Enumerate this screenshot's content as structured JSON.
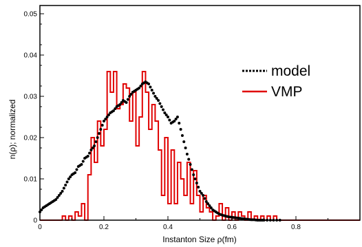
{
  "chart_data": {
    "type": "line",
    "xlabel": "Instanton Size ρ(fm)",
    "ylabel": "n(ρ);  normalized",
    "xlim": [
      0,
      1.0
    ],
    "ylim": [
      0,
      0.052
    ],
    "x_ticks": [
      0,
      0.2,
      0.4,
      0.6,
      0.8
    ],
    "x_tick_labels": [
      "0",
      "0.2",
      "0.4",
      "0.6",
      "0.8"
    ],
    "y_ticks": [
      0,
      0.01,
      0.02,
      0.03,
      0.04,
      0.05
    ],
    "y_tick_labels": [
      "0",
      "0.01",
      "0.02",
      "0.03",
      "0.04",
      "0.05"
    ],
    "grid": false,
    "legend_position": "right",
    "series": [
      {
        "name": "model",
        "style": "dotted",
        "color": "#000000",
        "x": [
          0.0,
          0.01,
          0.02,
          0.03,
          0.04,
          0.05,
          0.06,
          0.07,
          0.08,
          0.09,
          0.1,
          0.11,
          0.12,
          0.13,
          0.14,
          0.15,
          0.16,
          0.17,
          0.18,
          0.19,
          0.2,
          0.21,
          0.22,
          0.23,
          0.24,
          0.25,
          0.26,
          0.27,
          0.28,
          0.29,
          0.3,
          0.31,
          0.32,
          0.33,
          0.34,
          0.35,
          0.36,
          0.37,
          0.38,
          0.39,
          0.4,
          0.41,
          0.42,
          0.43,
          0.44,
          0.45,
          0.46,
          0.47,
          0.48,
          0.49,
          0.5,
          0.51,
          0.52,
          0.53,
          0.54,
          0.55,
          0.56,
          0.57,
          0.58,
          0.59,
          0.6,
          0.61,
          0.62,
          0.63,
          0.64,
          0.65,
          0.66,
          0.67,
          0.68,
          0.69,
          0.7,
          0.72,
          0.74,
          0.76
        ],
        "y": [
          0.002,
          0.003,
          0.0035,
          0.004,
          0.0045,
          0.005,
          0.006,
          0.007,
          0.0085,
          0.01,
          0.011,
          0.0115,
          0.013,
          0.0135,
          0.015,
          0.0155,
          0.017,
          0.018,
          0.02,
          0.022,
          0.024,
          0.025,
          0.026,
          0.0265,
          0.0275,
          0.028,
          0.029,
          0.0285,
          0.03,
          0.031,
          0.0315,
          0.032,
          0.033,
          0.0335,
          0.033,
          0.0315,
          0.03,
          0.029,
          0.0275,
          0.026,
          0.025,
          0.0235,
          0.024,
          0.025,
          0.022,
          0.019,
          0.016,
          0.0135,
          0.011,
          0.009,
          0.007,
          0.006,
          0.0045,
          0.0035,
          0.0025,
          0.002,
          0.0015,
          0.0012,
          0.001,
          0.0008,
          0.0007,
          0.0006,
          0.0005,
          0.0004,
          0.0003,
          0.0002,
          0.0001,
          0.0001,
          0.0,
          0.0,
          0.0,
          0.0,
          0.0,
          0.0
        ]
      },
      {
        "name": "VMP",
        "style": "step",
        "color": "#e00000",
        "x": [
          0.0,
          0.07,
          0.08,
          0.09,
          0.1,
          0.11,
          0.12,
          0.13,
          0.14,
          0.15,
          0.16,
          0.17,
          0.18,
          0.19,
          0.2,
          0.21,
          0.22,
          0.23,
          0.24,
          0.25,
          0.26,
          0.27,
          0.28,
          0.29,
          0.3,
          0.31,
          0.32,
          0.33,
          0.34,
          0.35,
          0.36,
          0.37,
          0.38,
          0.39,
          0.4,
          0.41,
          0.42,
          0.43,
          0.44,
          0.45,
          0.46,
          0.47,
          0.48,
          0.49,
          0.5,
          0.51,
          0.52,
          0.53,
          0.54,
          0.55,
          0.56,
          0.57,
          0.58,
          0.59,
          0.6,
          0.61,
          0.62,
          0.63,
          0.64,
          0.65,
          0.66,
          0.67,
          0.68,
          0.69,
          0.7,
          0.71,
          0.72,
          0.73,
          0.74,
          0.75,
          0.76,
          0.77,
          0.78,
          0.79,
          0.8,
          0.81,
          0.82,
          0.83,
          0.84,
          0.85,
          0.86,
          0.87,
          0.88,
          0.89,
          0.9,
          0.91,
          0.92,
          0.93,
          0.94,
          0.95,
          0.96,
          0.97,
          0.98,
          0.99,
          1.0
        ],
        "y": [
          0.0,
          0.001,
          0.0,
          0.001,
          0.0,
          0.002,
          0.001,
          0.004,
          0.0,
          0.011,
          0.02,
          0.014,
          0.024,
          0.018,
          0.022,
          0.036,
          0.031,
          0.036,
          0.027,
          0.028,
          0.033,
          0.032,
          0.024,
          0.031,
          0.018,
          0.025,
          0.036,
          0.031,
          0.022,
          0.028,
          0.024,
          0.017,
          0.006,
          0.02,
          0.004,
          0.017,
          0.004,
          0.014,
          0.01,
          0.006,
          0.014,
          0.004,
          0.012,
          0.006,
          0.002,
          0.006,
          0.003,
          0.002,
          0.0,
          0.001,
          0.004,
          0.0,
          0.003,
          0.0,
          0.002,
          0.0,
          0.002,
          0.001,
          0.0,
          0.002,
          0.0,
          0.001,
          0.0,
          0.001,
          0.0,
          0.001,
          0.0,
          0.001,
          0.0,
          0.0,
          0.0,
          0.0,
          0.0,
          0.0,
          0.0,
          0.0,
          0.0,
          0.0,
          0.0,
          0.0,
          0.0,
          0.0,
          0.0,
          0.0,
          0.0,
          0.0,
          0.0,
          0.0,
          0.0,
          0.0,
          0.0,
          0.0,
          0.0,
          0.0,
          0.0
        ]
      }
    ]
  }
}
